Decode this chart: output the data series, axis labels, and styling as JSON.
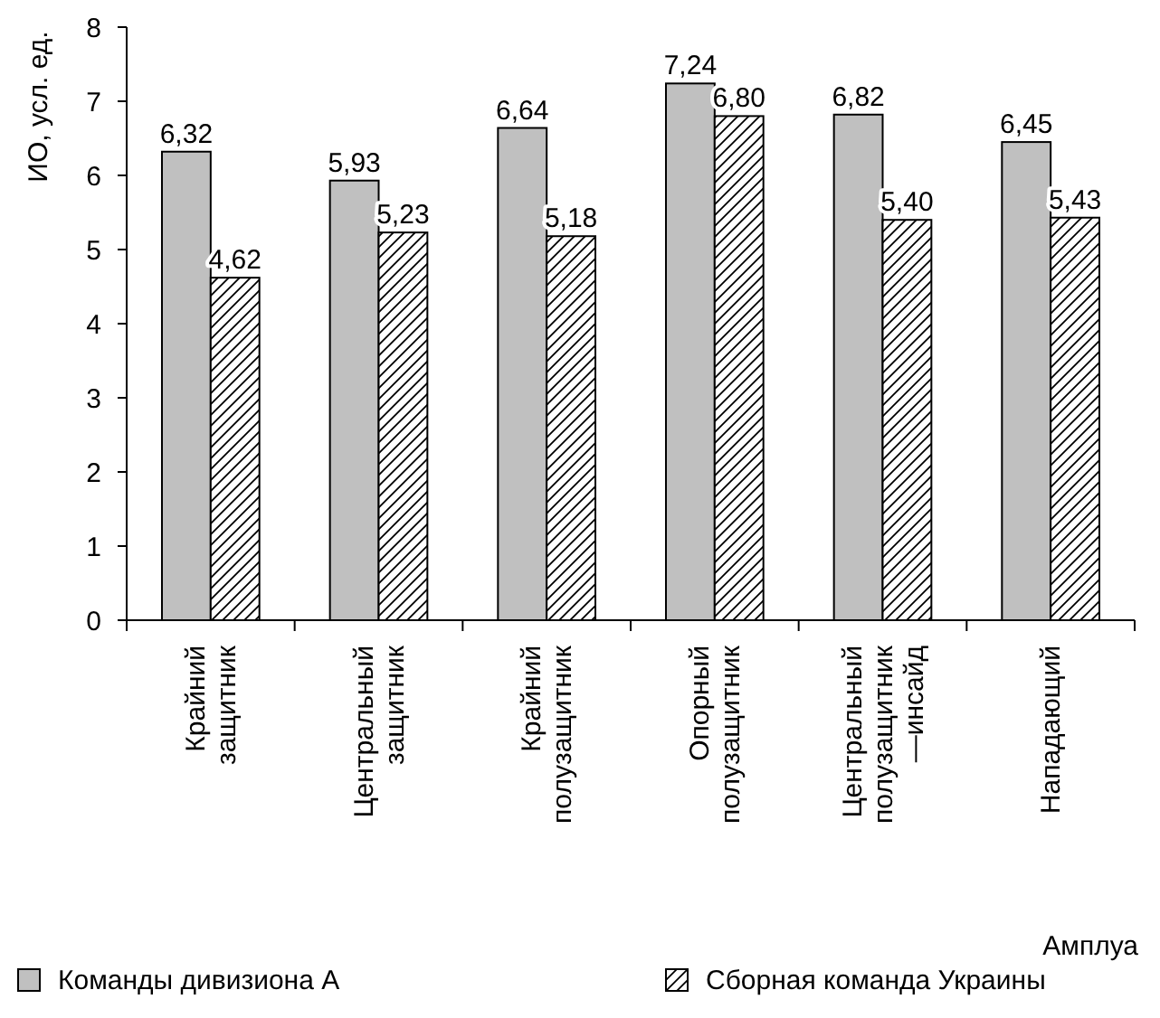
{
  "chart_data": {
    "type": "bar",
    "ylabel": "ИО, усл. ед.",
    "xlabel": "Амплуа",
    "categories": [
      "Крайний\nзащитник",
      "Центральный\nзащитник",
      "Крайний\nполузащитник",
      "Опорный\nполузащитник",
      "Центральный\nполузащитник\n—инсайд",
      "Нападающий"
    ],
    "series": [
      {
        "name": "Команды дивизиона А",
        "color": "#c0c0c0",
        "values": [
          6.32,
          5.93,
          6.64,
          7.24,
          6.82,
          6.45
        ],
        "value_labels": [
          "6,32",
          "5,93",
          "6,64",
          "7,24",
          "6,82",
          "6,45"
        ]
      },
      {
        "name": "Сборная команда Украины",
        "color": "#000000",
        "values": [
          4.62,
          5.23,
          5.18,
          6.8,
          5.4,
          5.43
        ],
        "value_labels": [
          "4,62",
          "5,23",
          "5,18",
          "6,80",
          "5,40",
          "5,43"
        ]
      }
    ],
    "ylim": [
      0,
      8
    ],
    "yticks": [
      0,
      1,
      2,
      3,
      4,
      5,
      6,
      7,
      8
    ],
    "grid": false,
    "legend": "bottom"
  }
}
